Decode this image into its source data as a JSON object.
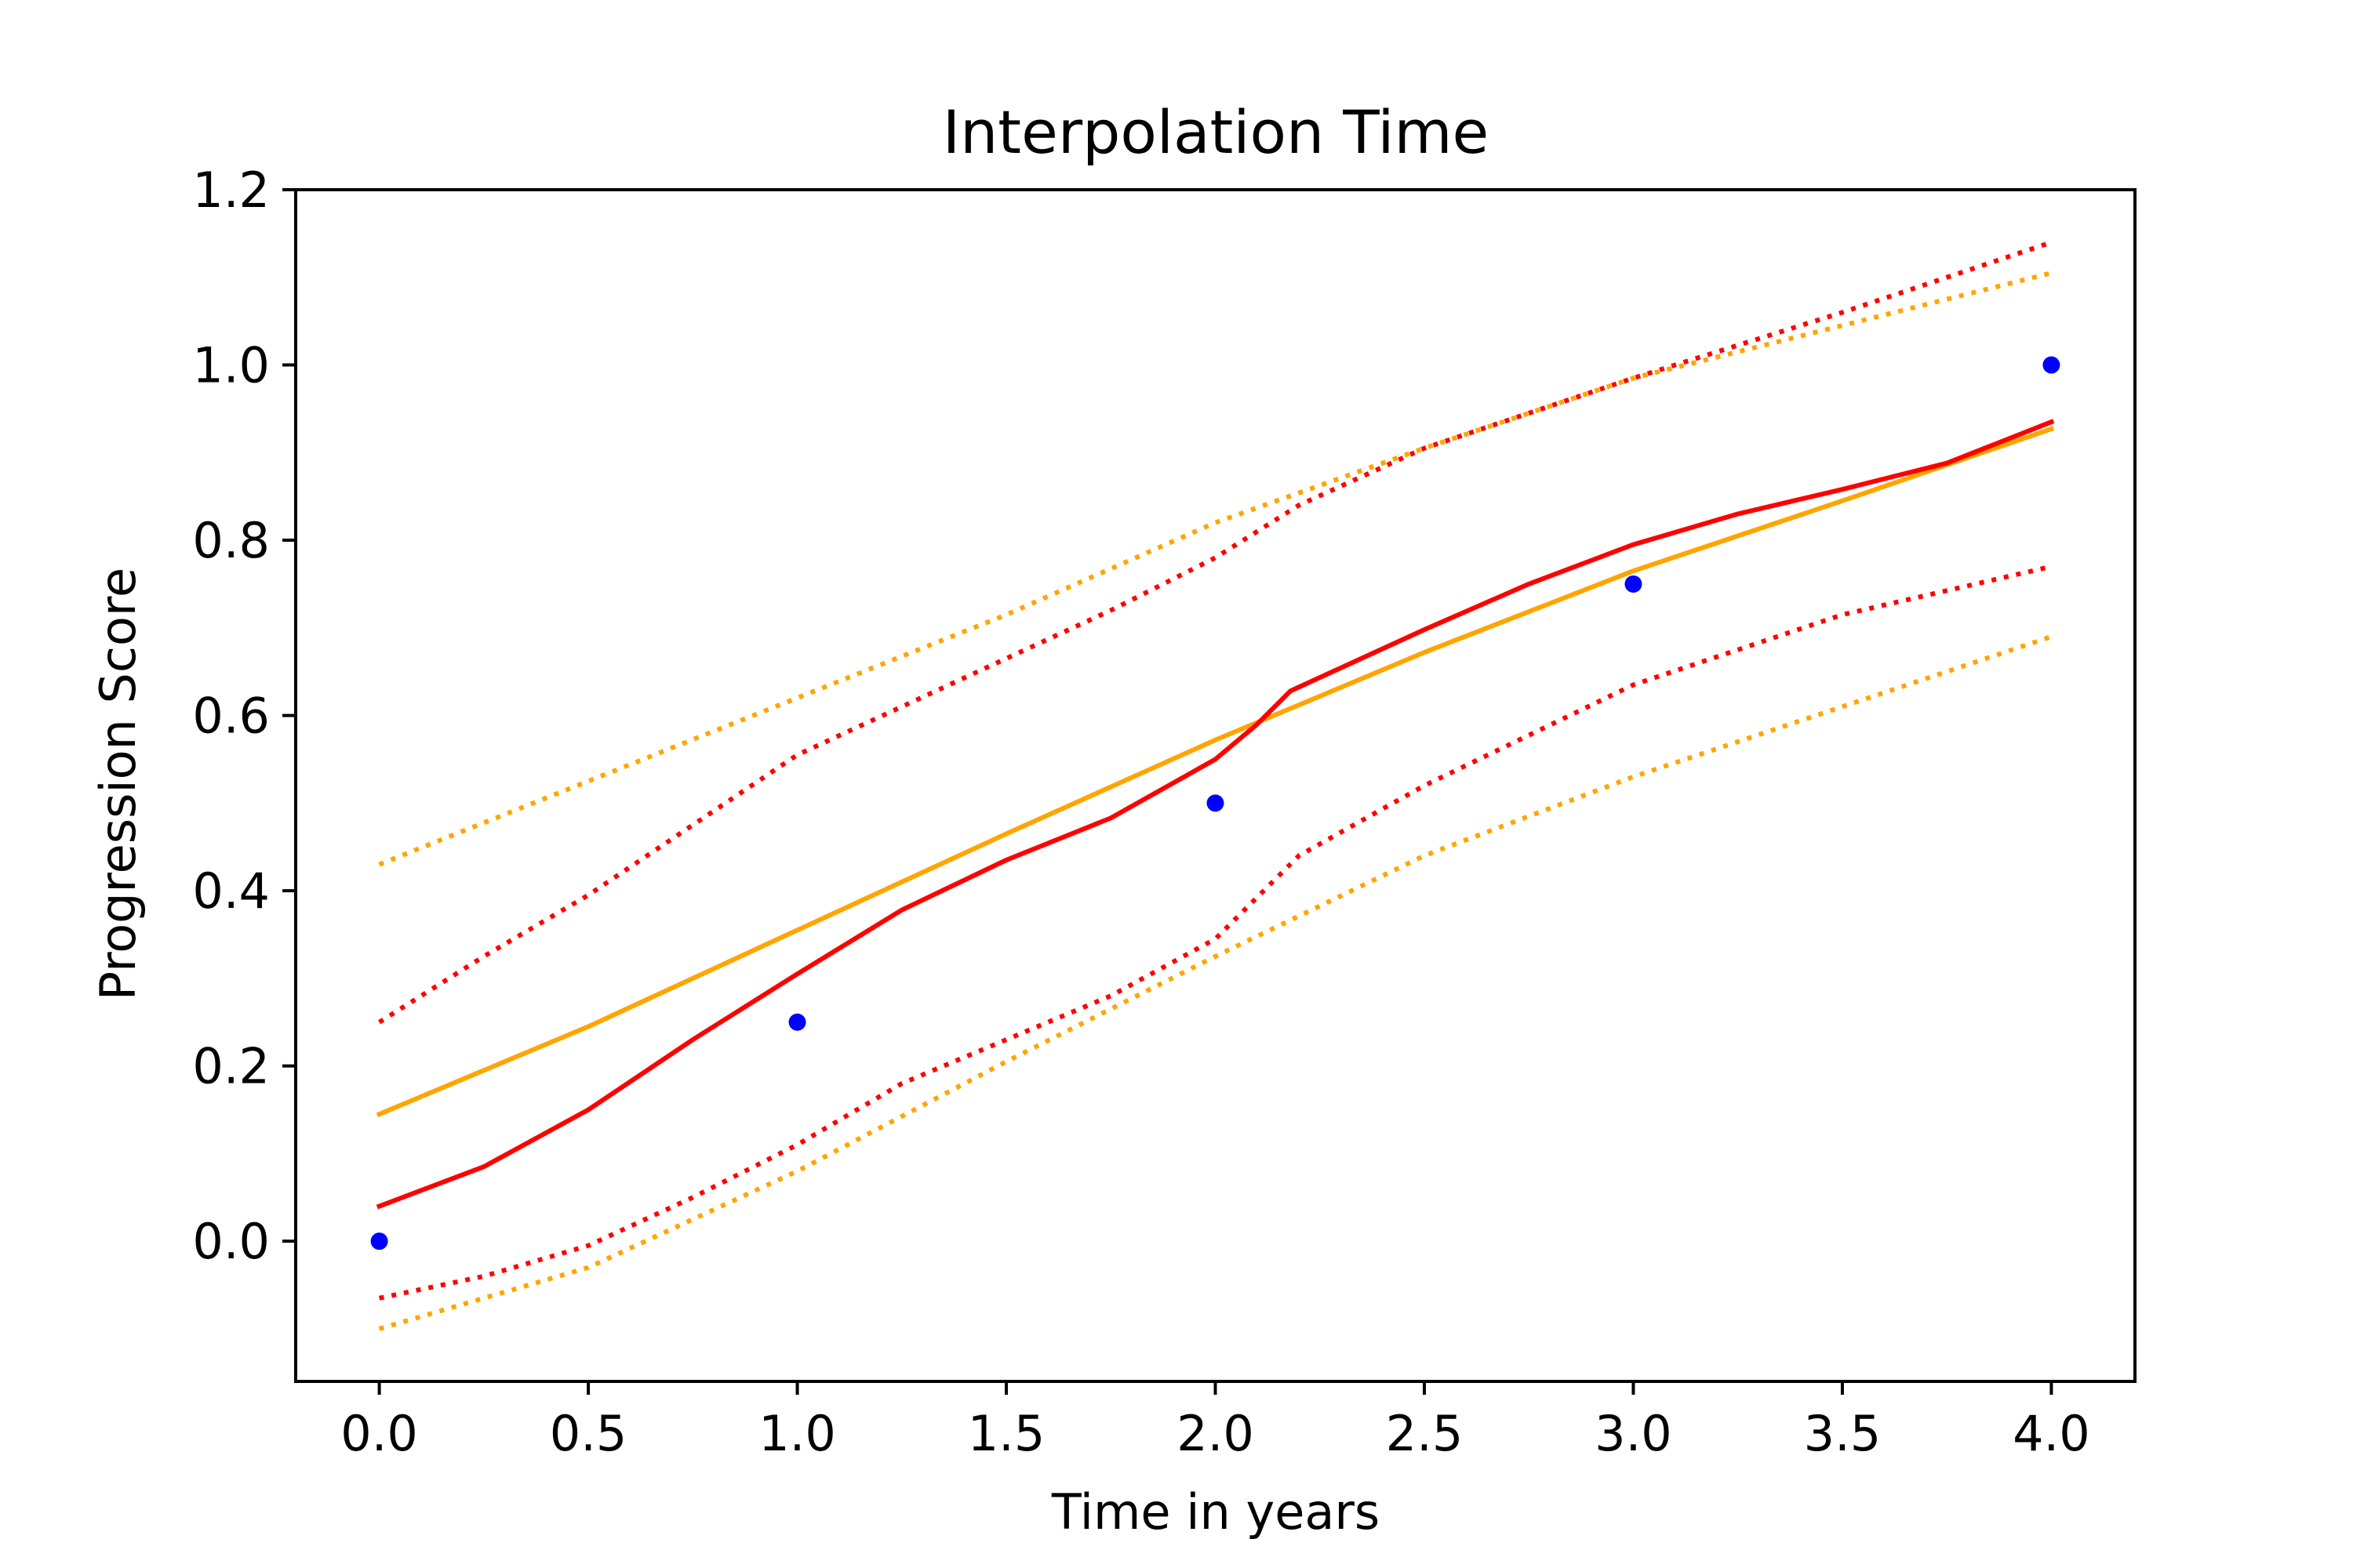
{
  "chart_data": {
    "type": "line",
    "title": "Interpolation Time",
    "xlabel": "Time in years",
    "ylabel": "Progression Score",
    "xlim": [
      -0.2,
      4.2
    ],
    "ylim": [
      -0.16,
      1.2
    ],
    "xticks": [
      0.0,
      0.5,
      1.0,
      1.5,
      2.0,
      2.5,
      3.0,
      3.5,
      4.0
    ],
    "xtick_labels": [
      "0.0",
      "0.5",
      "1.0",
      "1.5",
      "2.0",
      "2.5",
      "3.0",
      "3.5",
      "4.0"
    ],
    "yticks": [
      0.0,
      0.2,
      0.4,
      0.6,
      0.8,
      1.0,
      1.2
    ],
    "ytick_labels": [
      "0.0",
      "0.2",
      "0.4",
      "0.6",
      "0.8",
      "1.0",
      "1.2"
    ],
    "grid": false,
    "colors": {
      "red": "#ff0000",
      "orange": "#ffa500",
      "blue": "#0000ff"
    },
    "points": {
      "x": [
        0,
        1,
        2,
        3,
        4
      ],
      "y": [
        0.0,
        0.25,
        0.5,
        0.75,
        1.0
      ],
      "color": "#0000ff"
    },
    "series": [
      {
        "style": "solid",
        "color": "#ffa500",
        "x": [
          0,
          0.5,
          1.0,
          1.5,
          2.0,
          2.5,
          3.0,
          3.5,
          4.0
        ],
        "y": [
          0.145,
          0.245,
          0.355,
          0.465,
          0.572,
          0.672,
          0.765,
          0.845,
          0.927
        ]
      },
      {
        "style": "dotted",
        "color": "#ffa500",
        "x": [
          0,
          0.5,
          1.0,
          1.5,
          2.0,
          2.5,
          3.0,
          3.5,
          4.0
        ],
        "y": [
          0.43,
          0.525,
          0.62,
          0.715,
          0.82,
          0.905,
          0.985,
          1.045,
          1.105
        ]
      },
      {
        "style": "dotted",
        "color": "#ffa500",
        "x": [
          0,
          0.5,
          1.0,
          1.5,
          2.0,
          2.5,
          3.0,
          3.5,
          4.0
        ],
        "y": [
          -0.1,
          -0.03,
          0.08,
          0.205,
          0.325,
          0.44,
          0.53,
          0.61,
          0.69
        ]
      },
      {
        "style": "solid",
        "color": "#ff0000",
        "x": [
          0,
          0.25,
          0.5,
          0.75,
          1.0,
          1.25,
          1.5,
          1.75,
          2.0,
          2.1,
          2.18,
          2.5,
          2.75,
          3.0,
          3.25,
          3.5,
          3.75,
          4.0
        ],
        "y": [
          0.04,
          0.085,
          0.15,
          0.23,
          0.305,
          0.378,
          0.435,
          0.483,
          0.55,
          0.59,
          0.628,
          0.698,
          0.75,
          0.795,
          0.83,
          0.858,
          0.888,
          0.935
        ]
      },
      {
        "style": "dotted",
        "color": "#ff0000",
        "x": [
          0,
          0.25,
          0.5,
          0.75,
          1.0,
          1.25,
          1.5,
          1.75,
          2.0,
          2.2,
          2.5,
          3.0,
          3.5,
          4.0
        ],
        "y": [
          0.25,
          0.325,
          0.395,
          0.475,
          0.555,
          0.61,
          0.665,
          0.72,
          0.78,
          0.84,
          0.905,
          0.985,
          1.06,
          1.14
        ]
      },
      {
        "style": "dotted",
        "color": "#ff0000",
        "x": [
          0,
          0.25,
          0.5,
          0.75,
          1.0,
          1.25,
          1.5,
          1.75,
          2.0,
          2.2,
          2.5,
          3.0,
          3.5,
          4.0
        ],
        "y": [
          -0.065,
          -0.04,
          -0.005,
          0.05,
          0.11,
          0.18,
          0.23,
          0.28,
          0.345,
          0.44,
          0.52,
          0.635,
          0.715,
          0.77
        ]
      }
    ]
  }
}
